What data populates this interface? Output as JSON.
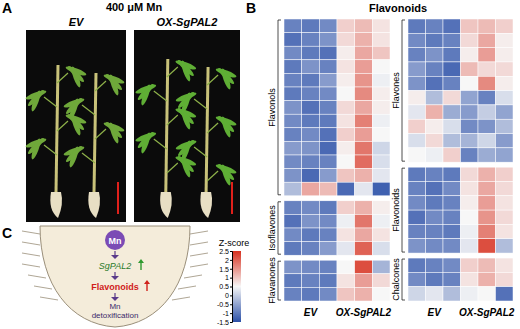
{
  "panel_labels": [
    "A",
    "B",
    "C"
  ],
  "panel_a": {
    "title": "400 μM Mn",
    "samples": [
      "EV",
      "OX-SgPAL2"
    ]
  },
  "chart_data": {
    "type": "heatmap",
    "title": "Flavonoids",
    "columns": [
      "EV",
      "OX-SgPAL2"
    ],
    "blocks": [
      {
        "groups": [
          {
            "name": "Flavonols",
            "rows": [
              [
                -0.9,
                -1.0,
                -0.8,
                0.9,
                1.1,
                0.7
              ],
              [
                -1.1,
                -0.9,
                -0.7,
                0.8,
                1.2,
                0.7
              ],
              [
                -0.8,
                -1.0,
                -1.1,
                0.6,
                1.3,
                1.0
              ],
              [
                -1.0,
                -0.7,
                -0.9,
                0.7,
                1.4,
                0.5
              ],
              [
                -0.9,
                -1.0,
                -0.6,
                0.6,
                1.5,
                0.4
              ],
              [
                -1.0,
                -0.9,
                -0.8,
                0.5,
                1.6,
                0.6
              ],
              [
                -0.7,
                -1.1,
                -0.9,
                0.8,
                1.3,
                0.6
              ],
              [
                -0.8,
                -1.0,
                -1.0,
                0.7,
                1.7,
                0.4
              ],
              [
                -0.9,
                -0.8,
                -1.1,
                0.9,
                1.4,
                0.5
              ],
              [
                -0.6,
                -0.7,
                -1.2,
                0.6,
                1.8,
                0.1
              ],
              [
                -0.8,
                -0.9,
                -0.9,
                0.5,
                1.9,
                0.2
              ],
              [
                -0.7,
                -1.2,
                -0.6,
                1.0,
                1.2,
                0.3
              ],
              [
                -0.2,
                1.3,
                1.1,
                -1.2,
                0.3,
                -1.3
              ]
            ]
          },
          {
            "name": "Isoflavones",
            "rows": [
              [
                -0.9,
                -0.8,
                -1.0,
                0.9,
                1.2,
                0.6
              ],
              [
                -1.1,
                -0.7,
                -0.8,
                0.4,
                1.8,
                0.4
              ],
              [
                -0.8,
                -1.0,
                -0.9,
                0.7,
                1.3,
                0.7
              ],
              [
                -1.0,
                -0.9,
                -0.6,
                0.3,
                2.0,
                0.2
              ]
            ]
          },
          {
            "name": "Flavanones",
            "rows": [
              [
                -0.7,
                -0.8,
                -0.9,
                0.5,
                2.2,
                -0.3
              ],
              [
                -1.0,
                -0.9,
                -1.0,
                0.7,
                1.4,
                0.8
              ],
              [
                -0.9,
                -1.0,
                -0.8,
                1.0,
                1.2,
                0.5
              ]
            ]
          }
        ]
      },
      {
        "groups": [
          {
            "name": "Flavones",
            "rows": [
              [
                -1.0,
                -0.9,
                -1.1,
                1.0,
                1.1,
                0.9
              ],
              [
                -0.8,
                -1.0,
                -0.9,
                0.8,
                1.3,
                0.6
              ],
              [
                -0.9,
                -0.7,
                -1.0,
                0.6,
                1.4,
                0.6
              ],
              [
                -0.6,
                -0.9,
                -1.2,
                1.1,
                0.8,
                0.8
              ],
              [
                -0.7,
                -1.1,
                -0.9,
                0.5,
                1.6,
                0.6
              ],
              [
                0.6,
                -0.2,
                0.8,
                -0.5,
                -0.9,
                0.2
              ],
              [
                0.3,
                1.2,
                -0.4,
                -0.6,
                0.0,
                -0.5
              ],
              [
                0.9,
                0.6,
                0.2,
                -0.8,
                -0.7,
                -0.2
              ],
              [
                0.2,
                0.8,
                -0.2,
                -0.3,
                0.1,
                -0.6
              ],
              [
                0.5,
                0.4,
                0.9,
                -0.9,
                -0.4,
                -0.5
              ]
            ]
          },
          {
            "name": "Flavonoids",
            "rows": [
              [
                -1.0,
                -0.9,
                -1.0,
                0.8,
                1.2,
                0.9
              ],
              [
                -0.9,
                -1.1,
                -0.8,
                0.7,
                1.3,
                0.8
              ],
              [
                -0.8,
                -1.0,
                -0.9,
                0.6,
                1.4,
                0.7
              ],
              [
                -1.1,
                -0.8,
                -0.9,
                0.5,
                1.5,
                0.8
              ],
              [
                -0.9,
                -0.9,
                -1.0,
                0.4,
                1.7,
                0.7
              ],
              [
                -0.7,
                -0.8,
                -0.8,
                0.3,
                2.2,
                -0.2
              ]
            ]
          },
          {
            "name": "Chalcones",
            "rows": [
              [
                -1.0,
                -0.9,
                -0.8,
                0.9,
                1.1,
                0.7
              ],
              [
                -0.8,
                -1.0,
                -0.9,
                0.7,
                1.2,
                0.8
              ],
              [
                0.1,
                0.3,
                -0.2,
                0.4,
                0.5,
                -1.1
              ]
            ]
          }
        ]
      }
    ],
    "color_bar": {
      "label": "Z-score",
      "range": [
        -1.5,
        2.5
      ],
      "ticks": [
        2.5,
        2,
        1.5,
        1,
        0.5,
        0,
        -0.5,
        -1,
        -1.5
      ],
      "stops": [
        -1.5,
        0.5,
        2.5
      ],
      "colors": [
        "#2b50a8",
        "#f7f7f7",
        "#d7301f"
      ]
    }
  },
  "panel_c": {
    "input": "Mn",
    "gene": "SgPAL2",
    "product": "Flavonoids",
    "outcome": [
      "Mn",
      "detoxification"
    ]
  }
}
